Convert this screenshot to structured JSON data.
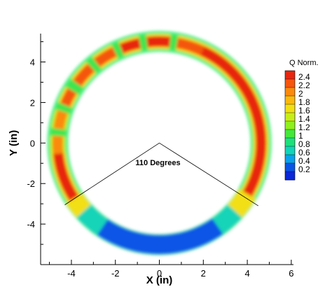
{
  "chart_data": {
    "type": "heatmap",
    "xlabel": "X (in)",
    "ylabel": "Y (in)",
    "xlim": [
      -5.4,
      6.1
    ],
    "ylim": [
      -6.0,
      5.4
    ],
    "x_ticks": [
      "-4",
      "-2",
      "0",
      "2",
      "4",
      "6"
    ],
    "x_tick_values": [
      -4,
      -2,
      0,
      2,
      4,
      6
    ],
    "y_ticks": [
      "-4",
      "-2",
      "0",
      "2",
      "4"
    ],
    "y_tick_values": [
      -4,
      -2,
      0,
      2,
      4
    ],
    "grid": false,
    "annotation": {
      "text": "110 Degrees",
      "vertex": [
        0,
        0
      ],
      "ray_ends": [
        [
          -4.3,
          -3.05
        ],
        [
          4.5,
          -3.1
        ]
      ]
    },
    "ring": {
      "center": [
        0,
        0
      ],
      "inner_radius": 4.15,
      "outer_radius": 5.1
    },
    "segments": [
      {
        "angle_start": -90,
        "angle_end": -55,
        "q": 0.2
      },
      {
        "angle_start": -55,
        "angle_end": -42,
        "q": 0.6
      },
      {
        "angle_start": -42,
        "angle_end": -30,
        "q": 1.6
      },
      {
        "angle_start": -30,
        "angle_end": 65,
        "q": 2.4
      },
      {
        "angle_start": 65,
        "angle_end": 80,
        "q": 2.2
      },
      {
        "angle_start": 84,
        "angle_end": 97,
        "q": 2.4
      },
      {
        "angle_start": 101,
        "angle_end": 112,
        "q": 2.4
      },
      {
        "angle_start": 116,
        "angle_end": 128,
        "q": 2.3
      },
      {
        "angle_start": 132,
        "angle_end": 144,
        "q": 2.3
      },
      {
        "angle_start": 149,
        "angle_end": 158,
        "q": 2.2
      },
      {
        "angle_start": 162,
        "angle_end": 172,
        "q": 2.0
      },
      {
        "angle_start": 176,
        "angle_end": 186,
        "q": 2.0
      },
      {
        "angle_start": 186,
        "angle_end": 213,
        "q": 2.4
      },
      {
        "angle_start": 213,
        "angle_end": 222,
        "q": 1.6
      },
      {
        "angle_start": 222,
        "angle_end": 236,
        "q": 0.6
      },
      {
        "angle_start": 236,
        "angle_end": 270,
        "q": 0.2
      }
    ],
    "colorbar": {
      "title": "Q Norm.",
      "levels": [
        "2.4",
        "2.2",
        "2",
        "1.8",
        "1.6",
        "1.4",
        "1.2",
        "1",
        "0.8",
        "0.6",
        "0.4",
        "0.2"
      ],
      "colors": [
        "#e8250e",
        "#f5560c",
        "#fb8a0c",
        "#fbb80e",
        "#f2df12",
        "#c8ee18",
        "#8ff01e",
        "#45e83a",
        "#1ee07a",
        "#12d4b8",
        "#0aa2ec",
        "#0a55e6",
        "#0a28d8"
      ]
    },
    "ring_base_color": "#3ee650",
    "ring_edge_color": "#56f08a"
  }
}
